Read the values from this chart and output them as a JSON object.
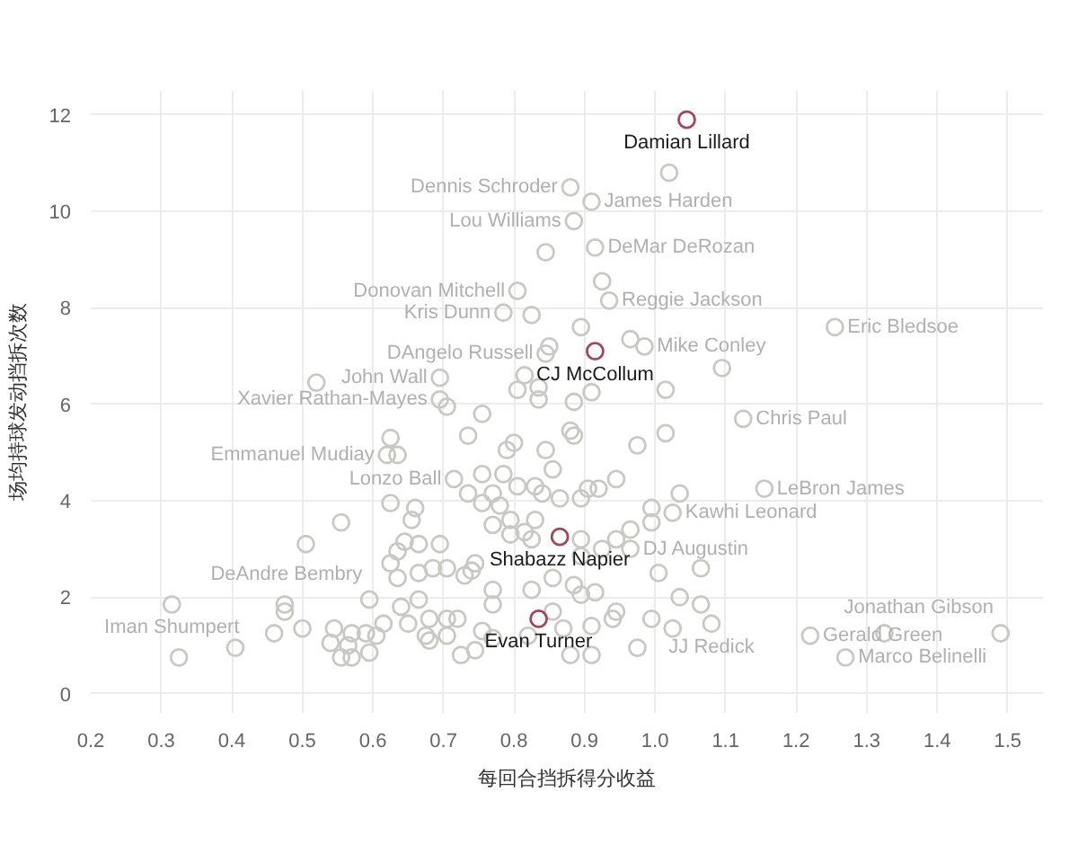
{
  "chart_data": {
    "type": "scatter",
    "xlabel": "每回合挡拆得分收益",
    "ylabel": "场均持球发动挡拆次数",
    "xlim": [
      0.2,
      1.55
    ],
    "ylim": [
      -0.4,
      12.5
    ],
    "xticks": [
      0.2,
      0.3,
      0.4,
      0.5,
      0.6,
      0.7,
      0.8,
      0.9,
      {
        "value": 1,
        "label": "1.0"
      },
      1.1,
      1.2,
      1.3,
      1.4,
      1.5
    ],
    "yticks": [
      0,
      2,
      4,
      6,
      8,
      10,
      12
    ],
    "grid": true,
    "marker": "circle",
    "series": [
      {
        "color": "#c9c9c4",
        "x": [
          1.02,
          0.88,
          0.91,
          0.885,
          0.915,
          0.845,
          0.805,
          0.925,
          0.935,
          0.785,
          0.825,
          0.895,
          1.255,
          0.985,
          0.965,
          1.095,
          0.85,
          0.845,
          0.52,
          0.695,
          0.695,
          0.705,
          0.755,
          0.805,
          0.815,
          0.835,
          0.835,
          0.885,
          0.91,
          1.015,
          0.625,
          0.62,
          0.635,
          0.735,
          0.755,
          0.715,
          0.785,
          0.8,
          0.79,
          0.805,
          0.83,
          0.77,
          0.755,
          0.735,
          0.625,
          0.66,
          0.655,
          0.555,
          0.505,
          0.645,
          0.665,
          0.695,
          0.635,
          0.625,
          0.665,
          0.685,
          0.705,
          0.635,
          0.73,
          0.74,
          0.745,
          0.77,
          0.825,
          0.595,
          0.475,
          0.475,
          0.315,
          0.46,
          0.5,
          0.405,
          0.325,
          0.545,
          0.57,
          0.59,
          0.605,
          0.54,
          0.565,
          0.555,
          0.57,
          0.595,
          0.615,
          0.64,
          0.665,
          0.65,
          0.68,
          0.675,
          0.68,
          0.705,
          0.72,
          0.705,
          0.725,
          0.745,
          0.77,
          0.755,
          0.77,
          0.82,
          0.83,
          0.815,
          0.795,
          0.78,
          0.795,
          0.77,
          1.125,
          1.015,
          0.975,
          0.88,
          0.885,
          0.845,
          0.855,
          0.945,
          0.92,
          0.905,
          0.895,
          0.865,
          0.84,
          1.035,
          1.155,
          0.995,
          1.025,
          0.995,
          0.965,
          0.965,
          0.945,
          0.925,
          0.895,
          0.895,
          0.825,
          1.005,
          1.065,
          1.035,
          1.065,
          1.08,
          0.995,
          1.025,
          0.975,
          0.945,
          0.94,
          0.91,
          0.91,
          0.88,
          0.87,
          0.855,
          0.855,
          0.885,
          0.895,
          0.915,
          1.22,
          1.325,
          1.27,
          1.49
        ],
        "values": [
          10.8,
          10.5,
          10.2,
          9.8,
          9.25,
          9.15,
          8.35,
          8.55,
          8.15,
          7.9,
          7.85,
          7.6,
          7.6,
          7.2,
          7.35,
          6.75,
          7.2,
          7.05,
          6.45,
          6.55,
          6.1,
          5.95,
          5.8,
          6.3,
          6.6,
          6.1,
          6.35,
          6.05,
          6.25,
          6.3,
          5.3,
          4.95,
          4.95,
          5.35,
          4.55,
          4.45,
          4.55,
          5.2,
          5.05,
          4.3,
          4.3,
          4.15,
          3.95,
          4.15,
          3.95,
          3.85,
          3.6,
          3.55,
          3.1,
          3.15,
          3.1,
          3.1,
          2.95,
          2.7,
          2.5,
          2.6,
          2.6,
          2.4,
          2.45,
          2.55,
          2.7,
          2.15,
          2.15,
          1.95,
          1.85,
          1.7,
          1.85,
          1.25,
          1.35,
          0.95,
          0.75,
          1.35,
          1.25,
          1.25,
          1.2,
          1.05,
          1.0,
          0.75,
          0.75,
          0.85,
          1.45,
          1.8,
          1.95,
          1.45,
          1.55,
          1.2,
          1.1,
          1.55,
          1.55,
          1.2,
          0.8,
          0.9,
          1.85,
          1.3,
          1.15,
          1.2,
          3.6,
          3.35,
          3.3,
          3.9,
          3.6,
          3.5,
          5.7,
          5.4,
          5.15,
          5.45,
          5.35,
          5.05,
          4.65,
          4.45,
          4.25,
          4.25,
          4.05,
          4.05,
          4.15,
          4.15,
          4.25,
          3.85,
          3.75,
          3.55,
          3.4,
          3.0,
          3.2,
          3.0,
          3.2,
          2.85,
          3.2,
          2.5,
          2.6,
          2.0,
          1.85,
          1.45,
          1.55,
          1.35,
          0.95,
          1.7,
          1.55,
          1.4,
          0.8,
          0.8,
          1.35,
          1.7,
          2.4,
          2.25,
          2.05,
          2.1,
          1.2,
          1.25,
          0.75,
          1.25
        ]
      },
      {
        "name": "Damian Lillard",
        "color": "#a0485a",
        "x": [
          1.045
        ],
        "values": [
          11.9
        ]
      },
      {
        "name": "CJ McCollum",
        "color": "#a0485a",
        "x": [
          0.915
        ],
        "values": [
          7.1
        ]
      },
      {
        "name": "Shabazz Napier",
        "color": "#a0485a",
        "x": [
          0.865
        ],
        "values": [
          3.25
        ]
      },
      {
        "name": "Evan Turner",
        "color": "#a0485a",
        "x": [
          0.835
        ],
        "values": [
          1.55
        ]
      }
    ],
    "annotations": [
      {
        "text": "Dennis Schroder",
        "x": 0.88,
        "y": 10.5
      },
      {
        "text": "James Harden",
        "x": 0.91,
        "y": 10.2
      },
      {
        "text": "Lou Williams",
        "x": 0.885,
        "y": 9.8
      },
      {
        "text": "DeMar DeRozan",
        "x": 0.915,
        "y": 9.25
      },
      {
        "text": "Donovan Mitchell",
        "x": 0.805,
        "y": 8.35
      },
      {
        "text": "Reggie Jackson",
        "x": 0.935,
        "y": 8.15
      },
      {
        "text": "Kris Dunn",
        "x": 0.785,
        "y": 7.9
      },
      {
        "text": "DAngelo Russell",
        "x": 0.845,
        "y": 7.05
      },
      {
        "text": "Mike Conley",
        "x": 0.985,
        "y": 7.2
      },
      {
        "text": "Eric Bledsoe",
        "x": 1.255,
        "y": 7.6
      },
      {
        "text": "John Wall",
        "x": 0.695,
        "y": 6.55
      },
      {
        "text": "Xavier Rathan-Mayes",
        "x": 0.695,
        "y": 6.1
      },
      {
        "text": "Chris Paul",
        "x": 1.125,
        "y": 5.7
      },
      {
        "text": "Emmanuel Mudiay",
        "x": 0.62,
        "y": 4.95
      },
      {
        "text": "Lonzo Ball",
        "x": 0.715,
        "y": 4.45
      },
      {
        "text": "LeBron James",
        "x": 1.155,
        "y": 4.25
      },
      {
        "text": "Kawhi Leonard",
        "x": 1.025,
        "y": 3.75
      },
      {
        "text": "DJ Augustin",
        "x": 0.965,
        "y": 3.0
      },
      {
        "text": "DeAndre Bembry",
        "x": 0.595,
        "y": 1.95
      },
      {
        "text": "Iman Shumpert",
        "x": 0.315,
        "y": 1.85
      },
      {
        "text": "JJ Redick",
        "x": 1.08,
        "y": 1.45
      },
      {
        "text": "Gerald Green",
        "x": 1.22,
        "y": 1.2
      },
      {
        "text": "Marco Belinelli",
        "x": 1.27,
        "y": 0.75
      },
      {
        "text": "Jonathan Gibson",
        "x": 1.49,
        "y": 1.25
      }
    ]
  }
}
